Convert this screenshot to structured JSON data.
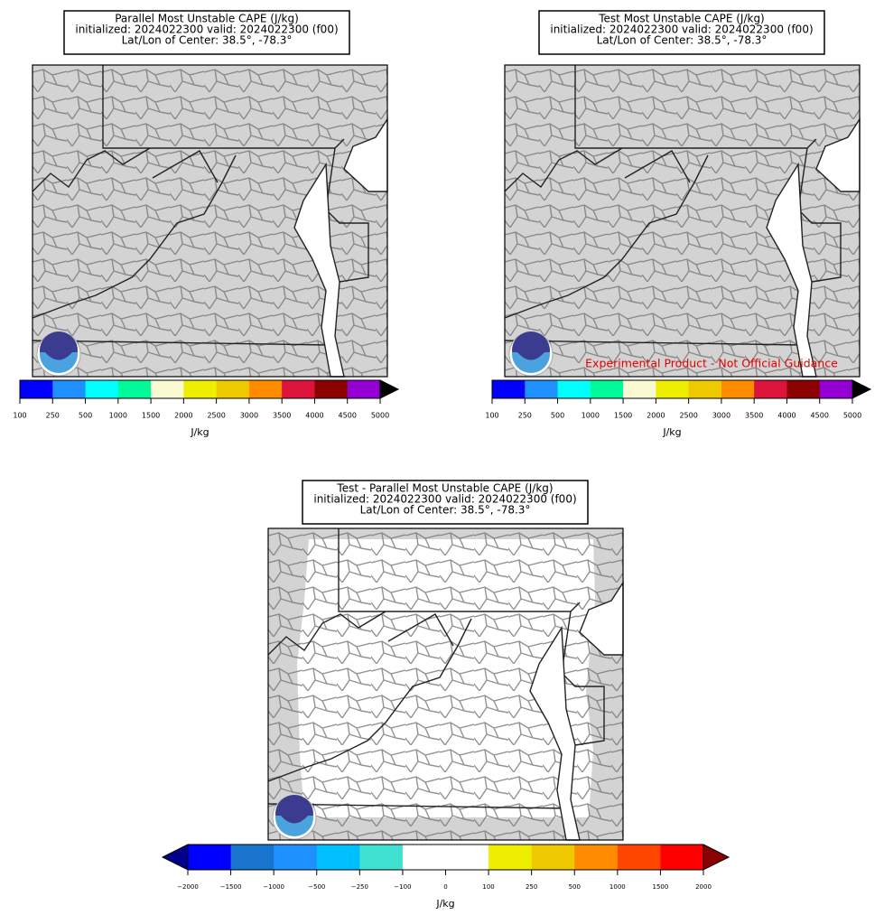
{
  "panels": [
    {
      "title": [
        "Parallel Most Unstable CAPE (J/kg)",
        "initialized: 2024022300 valid: 2024022300 (f00)",
        "Lat/Lon of Center: 38.5°, -78.3°"
      ],
      "colorbar": {
        "ticks": [
          "100",
          "250",
          "500",
          "1000",
          "1500",
          "2000",
          "2500",
          "3000",
          "3500",
          "4000",
          "4500",
          "5000"
        ],
        "colors": [
          "#0000ff",
          "#1e90ff",
          "#00ffff",
          "#00fa9a",
          "#fafad2",
          "#eeee00",
          "#eec900",
          "#ff8c00",
          "#dc143c",
          "#8b0000",
          "#9400d3"
        ],
        "over_color": "#000000",
        "label": "J/kg"
      }
    },
    {
      "title": [
        "Test Most Unstable CAPE (J/kg)",
        "initialized: 2024022300 valid: 2024022300 (f00)",
        "Lat/Lon of Center: 38.5°, -78.3°"
      ],
      "colorbar": {
        "ticks": [
          "100",
          "250",
          "500",
          "1000",
          "1500",
          "2000",
          "2500",
          "3000",
          "3500",
          "4000",
          "4500",
          "5000"
        ],
        "colors": [
          "#0000ff",
          "#1e90ff",
          "#00ffff",
          "#00fa9a",
          "#fafad2",
          "#eeee00",
          "#eec900",
          "#ff8c00",
          "#dc143c",
          "#8b0000",
          "#9400d3"
        ],
        "over_color": "#000000",
        "label": "J/kg"
      },
      "watermark": "Experimental Product - Not Official Guidance"
    },
    {
      "title": [
        "Test - Parallel Most Unstable CAPE (J/kg)",
        "initialized: 2024022300 valid: 2024022300 (f00)",
        "Lat/Lon of Center: 38.5°, -78.3°"
      ],
      "colorbar": {
        "ticks": [
          "−2000",
          "−1500",
          "−1000",
          "−500",
          "−250",
          "−100",
          "0",
          "100",
          "250",
          "500",
          "1000",
          "1500",
          "2000"
        ],
        "colors": [
          "#0000ff",
          "#1874cd",
          "#1e90ff",
          "#00bfff",
          "#40e0d0",
          "#ffffff",
          "#ffffff",
          "#eeee00",
          "#eec900",
          "#ff8c00",
          "#ff4500",
          "#ff0000"
        ],
        "under_color": "#00008b",
        "over_color": "#8b0000",
        "label": "J/kg"
      }
    }
  ]
}
